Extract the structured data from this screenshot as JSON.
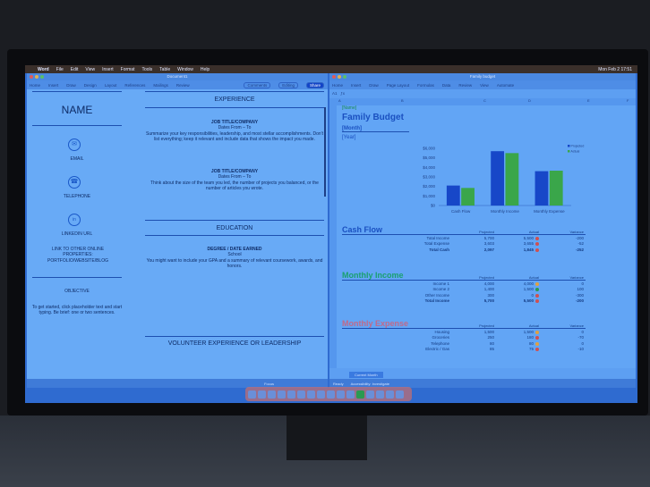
{
  "menubar": {
    "app": "Word",
    "items": [
      "File",
      "Edit",
      "View",
      "Insert",
      "Format",
      "Tools",
      "Table",
      "Window",
      "Help"
    ],
    "clock": "Mon Feb 2 17:51"
  },
  "word": {
    "title": "Document1",
    "tabs": [
      "Home",
      "Insert",
      "Draw",
      "Design",
      "Layout",
      "References",
      "Mailings",
      "Review"
    ],
    "comments": "Comments",
    "editing": "Editing",
    "share": "Share",
    "resume": {
      "name": "NAME",
      "email": "EMAIL",
      "telephone": "TELEPHONE",
      "linkedin": "LINKEDIN URL",
      "other": "LINK TO OTHER ONLINE PROPERTIES: PORTFOLIO/WEBSITE/BLOG",
      "objective_heading": "OBJECTIVE",
      "objective": "To get started, click placeholder text and start typing. Be brief: one or two sentences.",
      "experience_heading": "EXPERIENCE",
      "jobs": [
        {
          "title": "JOB TITLE/COMPANY",
          "dates": "Dates From – To",
          "desc": "Summarize your key responsibilities, leadership, and most stellar accomplishments. Don't list everything; keep it relevant and include data that shows the impact you made."
        },
        {
          "title": "JOB TITLE/COMPANY",
          "dates": "Dates From – To",
          "desc": "Think about the size of the team you led, the number of projects you balanced, or the number of articles you wrote."
        }
      ],
      "education_heading": "EDUCATION",
      "degree": "DEGREE / DATE EARNED",
      "school": "School",
      "edu_desc": "You might want to include your GPA and a summary of relevant coursework, awards, and honors.",
      "volunteer_heading": "VOLUNTEER EXPERIENCE OR LEADERSHIP"
    },
    "status": "Focus"
  },
  "excel": {
    "title": "Family budget",
    "tabs": [
      "Home",
      "Insert",
      "Draw",
      "Page Layout",
      "Formulas",
      "Data",
      "Review",
      "View",
      "Automate"
    ],
    "cell_ref": "A1",
    "columns": [
      "A",
      "B",
      "C",
      "D",
      "E",
      "F"
    ],
    "sheet_tab": "Current Month",
    "status": "Ready",
    "accessibility": "Accessibility: Investigate",
    "name": "[Name]",
    "heading": "Family Budget",
    "month": "[Month]",
    "year": "[Year]",
    "cash_flow": {
      "title": "Cash Flow",
      "headers": [
        "",
        "Projected",
        "Actual",
        "Variance"
      ],
      "rows": [
        [
          "Total Income",
          "5,700",
          "5,500",
          "-200"
        ],
        [
          "Total Expense",
          "3,603",
          "3,655",
          "-52"
        ],
        [
          "Total Cash",
          "2,097",
          "1,845",
          "-252"
        ]
      ]
    },
    "income": {
      "title": "Monthly Income",
      "headers": [
        "",
        "Projected",
        "Actual",
        "Variance"
      ],
      "rows": [
        [
          "Income 1",
          "4,000",
          "4,000",
          "0"
        ],
        [
          "Income 2",
          "1,400",
          "1,500",
          "100"
        ],
        [
          "Other Income",
          "300",
          "0",
          "-300"
        ],
        [
          "Total Income",
          "5,700",
          "5,500",
          "-200"
        ]
      ]
    },
    "expense": {
      "title": "Monthly Expense",
      "headers": [
        "",
        "Projected",
        "Actual",
        "Variance"
      ],
      "rows": [
        [
          "Housing",
          "1,500",
          "1,500",
          "0"
        ],
        [
          "Groceries",
          "250",
          "180",
          "-70"
        ],
        [
          "Telephone",
          "80",
          "80",
          "0"
        ],
        [
          "Electric / Gas",
          "85",
          "75",
          "-10"
        ]
      ]
    }
  },
  "chart_data": {
    "type": "bar",
    "categories": [
      "Cash Flow",
      "Monthly Income",
      "Monthly Expense"
    ],
    "series": [
      {
        "name": "Projected",
        "values": [
          2097,
          5700,
          3603
        ],
        "color": "#1747c8"
      },
      {
        "name": "Actual",
        "values": [
          1845,
          5500,
          3655
        ],
        "color": "#3aa64a"
      }
    ],
    "yticks": [
      "$0",
      "$1,000",
      "$2,000",
      "$3,000",
      "$4,000",
      "$5,000",
      "$6,000"
    ],
    "ylim": [
      0,
      6000
    ],
    "legend": "top-right"
  }
}
